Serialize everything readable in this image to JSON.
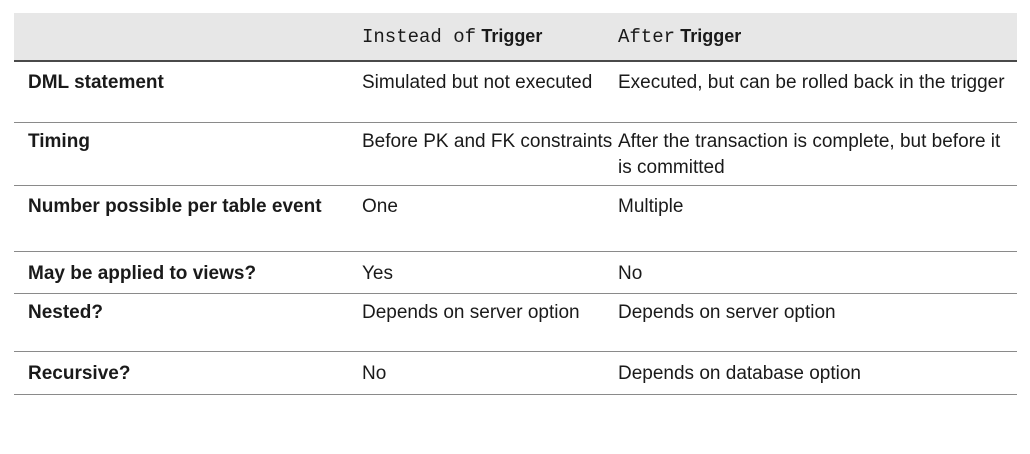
{
  "table": {
    "header": {
      "col2_code": "Instead of",
      "col2_word": "Trigger",
      "col3_code": "After",
      "col3_word": "Trigger"
    },
    "rows": [
      {
        "label": "DML statement",
        "instead_of": "Simulated but not executed",
        "after": "Executed, but can be rolled back in the trigger"
      },
      {
        "label": "Timing",
        "instead_of": "Before PK and FK constraints",
        "after": "After the transaction is complete, but before it is committed"
      },
      {
        "label": "Number possible per table event",
        "instead_of": "One",
        "after": "Multiple"
      },
      {
        "label": "May be applied to views?",
        "instead_of": "Yes",
        "after": "No"
      },
      {
        "label": "Nested?",
        "instead_of": "Depends on server option",
        "after": "Depends on server option"
      },
      {
        "label": "Recursive?",
        "instead_of": "No",
        "after": "Depends on database option"
      }
    ]
  }
}
